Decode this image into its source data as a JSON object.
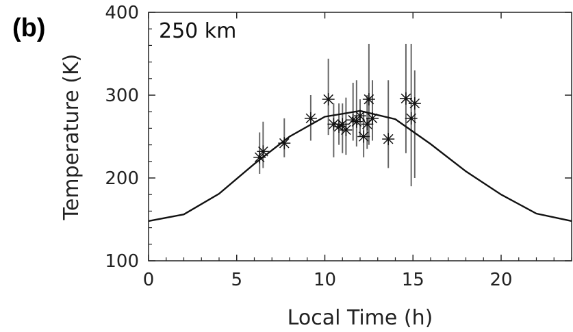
{
  "panel_label": "(b)",
  "chart_data": {
    "type": "scatter",
    "xlabel": "Local Time (h)",
    "ylabel": "Temperature (K)",
    "annotation": "250 km",
    "xlim": [
      0,
      24
    ],
    "ylim": [
      100,
      400
    ],
    "xticks": [
      0,
      5,
      10,
      15,
      20
    ],
    "yticks": [
      100,
      200,
      300,
      400
    ],
    "grid": false,
    "model_curve": {
      "x": [
        0,
        2,
        4,
        6,
        8,
        10,
        12,
        14,
        16,
        18,
        20,
        22,
        24
      ],
      "y": [
        148,
        156,
        181,
        217,
        250,
        274,
        281,
        271,
        241,
        208,
        180,
        157,
        148
      ]
    },
    "observations": [
      {
        "x": 6.3,
        "y": 225,
        "ylow": 205,
        "yhigh": 255
      },
      {
        "x": 6.5,
        "y": 232,
        "ylow": 212,
        "yhigh": 268
      },
      {
        "x": 7.7,
        "y": 242,
        "ylow": 225,
        "yhigh": 272
      },
      {
        "x": 9.2,
        "y": 272,
        "ylow": 245,
        "yhigh": 300
      },
      {
        "x": 10.2,
        "y": 295,
        "ylow": 252,
        "yhigh": 344
      },
      {
        "x": 10.5,
        "y": 265,
        "ylow": 225,
        "yhigh": 290
      },
      {
        "x": 10.8,
        "y": 262,
        "ylow": 240,
        "yhigh": 290
      },
      {
        "x": 11.0,
        "y": 265,
        "ylow": 230,
        "yhigh": 290
      },
      {
        "x": 11.2,
        "y": 258,
        "ylow": 228,
        "yhigh": 297
      },
      {
        "x": 11.6,
        "y": 270,
        "ylow": 245,
        "yhigh": 315
      },
      {
        "x": 11.8,
        "y": 268,
        "ylow": 238,
        "yhigh": 318
      },
      {
        "x": 12.0,
        "y": 275,
        "ylow": 250,
        "yhigh": 295
      },
      {
        "x": 12.2,
        "y": 250,
        "ylow": 225,
        "yhigh": 280
      },
      {
        "x": 12.4,
        "y": 265,
        "ylow": 235,
        "yhigh": 300
      },
      {
        "x": 12.5,
        "y": 295,
        "ylow": 240,
        "yhigh": 362
      },
      {
        "x": 12.7,
        "y": 272,
        "ylow": 245,
        "yhigh": 318
      },
      {
        "x": 13.6,
        "y": 247,
        "ylow": 212,
        "yhigh": 318
      },
      {
        "x": 14.6,
        "y": 296,
        "ylow": 230,
        "yhigh": 362
      },
      {
        "x": 14.9,
        "y": 272,
        "ylow": 190,
        "yhigh": 362
      },
      {
        "x": 15.1,
        "y": 290,
        "ylow": 200,
        "yhigh": 330
      }
    ]
  }
}
